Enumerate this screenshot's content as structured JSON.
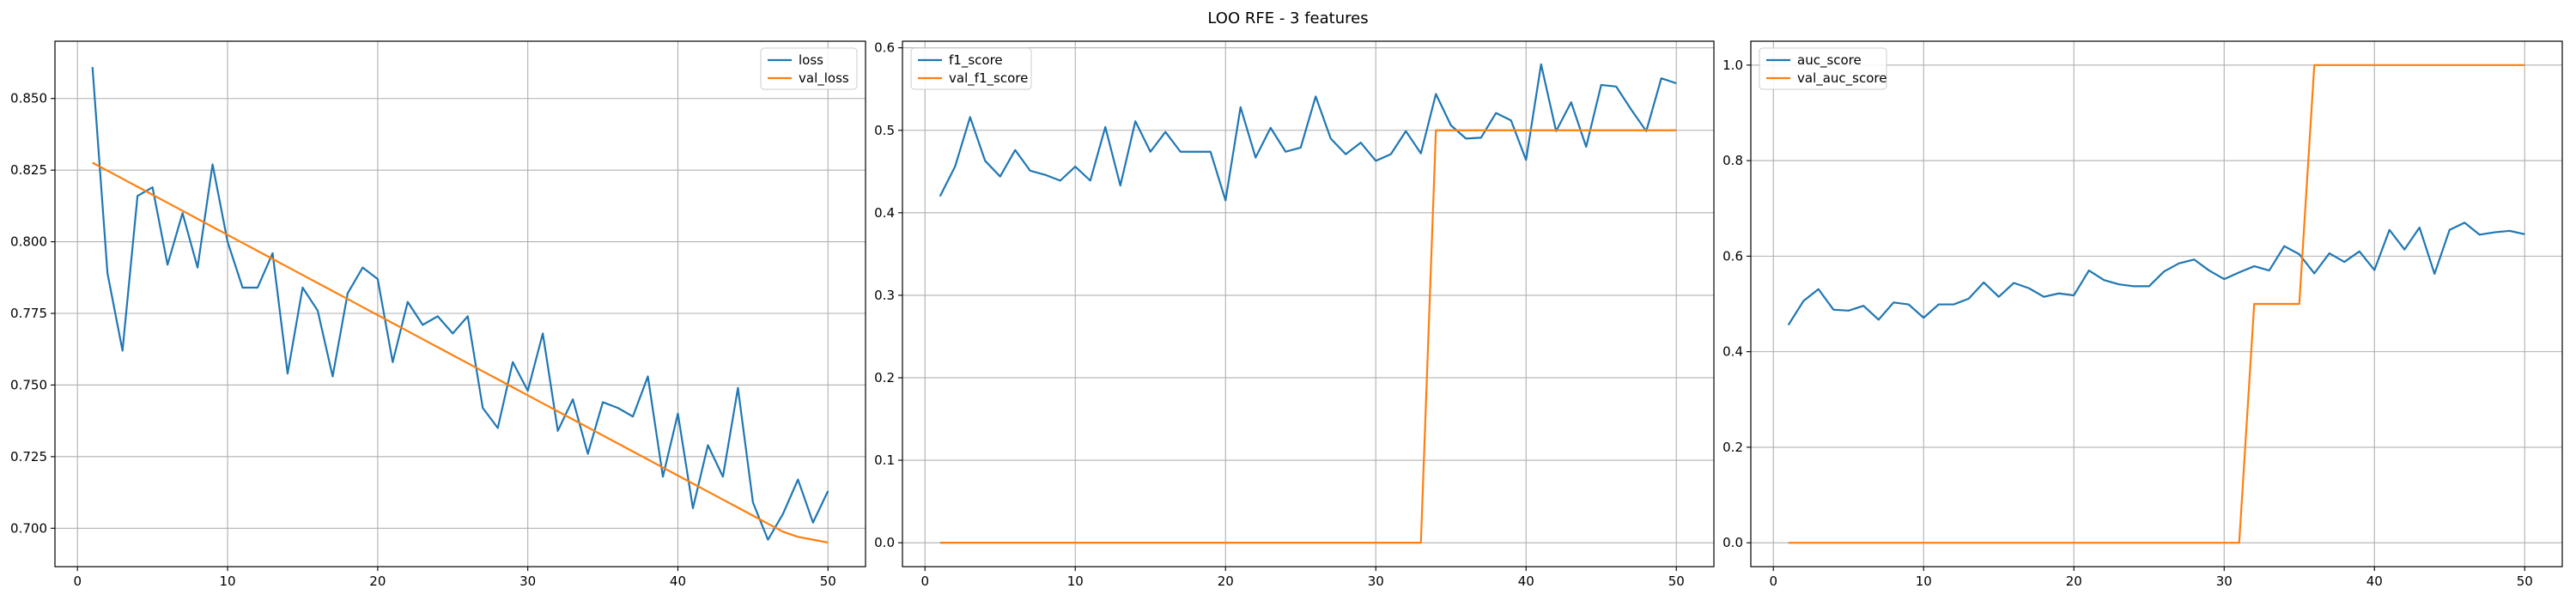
{
  "figure": {
    "title": "LOO RFE - 3 features"
  },
  "chart_data": [
    {
      "type": "line",
      "title": "",
      "xlabel": "",
      "ylabel": "",
      "grid": true,
      "legend_position": "top-right",
      "xlim": [
        -1.5,
        52.5
      ],
      "ylim": [
        0.6866,
        0.87
      ],
      "xticks": [
        0,
        10,
        20,
        30,
        40,
        50
      ],
      "yticks": [
        0.7,
        0.725,
        0.75,
        0.775,
        0.8,
        0.825,
        0.85
      ],
      "ytick_labels": [
        "0.700",
        "0.725",
        "0.750",
        "0.775",
        "0.800",
        "0.825",
        "0.850"
      ],
      "xtick_labels": [
        "0",
        "10",
        "20",
        "30",
        "40",
        "50"
      ],
      "series": [
        {
          "name": "loss",
          "color": "#1f77b4",
          "x": [
            1,
            2,
            3,
            4,
            5,
            6,
            7,
            8,
            9,
            10,
            11,
            12,
            13,
            14,
            15,
            16,
            17,
            18,
            19,
            20,
            21,
            22,
            23,
            24,
            25,
            26,
            27,
            28,
            29,
            30,
            31,
            32,
            33,
            34,
            35,
            36,
            37,
            38,
            39,
            40,
            41,
            42,
            43,
            44,
            45,
            46,
            47,
            48,
            49,
            50
          ],
          "y": [
            0.861,
            0.789,
            0.762,
            0.816,
            0.819,
            0.792,
            0.81,
            0.791,
            0.827,
            0.8,
            0.784,
            0.784,
            0.796,
            0.754,
            0.784,
            0.776,
            0.753,
            0.782,
            0.791,
            0.787,
            0.758,
            0.779,
            0.771,
            0.774,
            0.768,
            0.774,
            0.742,
            0.735,
            0.758,
            0.748,
            0.768,
            0.734,
            0.745,
            0.726,
            0.744,
            0.742,
            0.739,
            0.753,
            0.718,
            0.74,
            0.707,
            0.729,
            0.718,
            0.749,
            0.709,
            0.696,
            0.705,
            0.717,
            0.702,
            0.713
          ]
        },
        {
          "name": "val_loss",
          "color": "#ff7f0e",
          "x": [
            1,
            2,
            3,
            4,
            5,
            6,
            7,
            8,
            9,
            10,
            11,
            12,
            13,
            14,
            15,
            16,
            17,
            18,
            19,
            20,
            21,
            22,
            23,
            24,
            25,
            26,
            27,
            28,
            29,
            30,
            31,
            32,
            33,
            34,
            35,
            36,
            37,
            38,
            39,
            40,
            41,
            42,
            43,
            44,
            45,
            46,
            47,
            48,
            49,
            50
          ],
          "y": [
            0.8276,
            0.8248,
            0.822,
            0.8192,
            0.8164,
            0.8136,
            0.8108,
            0.808,
            0.8052,
            0.8024,
            0.7996,
            0.7968,
            0.794,
            0.7912,
            0.7884,
            0.7856,
            0.7828,
            0.78,
            0.7772,
            0.7744,
            0.7716,
            0.7688,
            0.766,
            0.7632,
            0.7604,
            0.7576,
            0.7548,
            0.752,
            0.7492,
            0.7464,
            0.7436,
            0.7408,
            0.738,
            0.7352,
            0.7324,
            0.7296,
            0.7268,
            0.724,
            0.7212,
            0.7184,
            0.7156,
            0.7128,
            0.71,
            0.7072,
            0.7044,
            0.7016,
            0.6988,
            0.697,
            0.696,
            0.695
          ]
        }
      ]
    },
    {
      "type": "line",
      "title": "",
      "xlabel": "",
      "ylabel": "",
      "grid": true,
      "legend_position": "top-left",
      "xlim": [
        -1.5,
        52.5
      ],
      "ylim": [
        -0.029,
        0.608
      ],
      "xticks": [
        0,
        10,
        20,
        30,
        40,
        50
      ],
      "yticks": [
        0.0,
        0.1,
        0.2,
        0.3,
        0.4,
        0.5,
        0.6
      ],
      "ytick_labels": [
        "0.0",
        "0.1",
        "0.2",
        "0.3",
        "0.4",
        "0.5",
        "0.6"
      ],
      "xtick_labels": [
        "0",
        "10",
        "20",
        "30",
        "40",
        "50"
      ],
      "series": [
        {
          "name": "f1_score",
          "color": "#1f77b4",
          "x": [
            1,
            2,
            3,
            4,
            5,
            6,
            7,
            8,
            9,
            10,
            11,
            12,
            13,
            14,
            15,
            16,
            17,
            18,
            19,
            20,
            21,
            22,
            23,
            24,
            25,
            26,
            27,
            28,
            29,
            30,
            31,
            32,
            33,
            34,
            35,
            36,
            37,
            38,
            39,
            40,
            41,
            42,
            43,
            44,
            45,
            46,
            47,
            48,
            49,
            50
          ],
          "y": [
            0.42,
            0.456,
            0.516,
            0.463,
            0.444,
            0.476,
            0.451,
            0.446,
            0.439,
            0.456,
            0.439,
            0.504,
            0.433,
            0.511,
            0.474,
            0.498,
            0.474,
            0.474,
            0.474,
            0.415,
            0.528,
            0.467,
            0.503,
            0.474,
            0.479,
            0.541,
            0.49,
            0.471,
            0.485,
            0.463,
            0.471,
            0.499,
            0.472,
            0.544,
            0.506,
            0.49,
            0.491,
            0.521,
            0.512,
            0.464,
            0.58,
            0.499,
            0.534,
            0.48,
            0.555,
            0.553,
            0.525,
            0.499,
            0.563,
            0.557
          ]
        },
        {
          "name": "val_f1_score",
          "color": "#ff7f0e",
          "x": [
            1,
            2,
            3,
            4,
            5,
            6,
            7,
            8,
            9,
            10,
            11,
            12,
            13,
            14,
            15,
            16,
            17,
            18,
            19,
            20,
            21,
            22,
            23,
            24,
            25,
            26,
            27,
            28,
            29,
            30,
            31,
            32,
            33,
            34,
            35,
            36,
            37,
            38,
            39,
            40,
            41,
            42,
            43,
            44,
            45,
            46,
            47,
            48,
            49,
            50
          ],
          "y": [
            0,
            0,
            0,
            0,
            0,
            0,
            0,
            0,
            0,
            0,
            0,
            0,
            0,
            0,
            0,
            0,
            0,
            0,
            0,
            0,
            0,
            0,
            0,
            0,
            0,
            0,
            0,
            0,
            0,
            0,
            0,
            0,
            0,
            0.5,
            0.5,
            0.5,
            0.5,
            0.5,
            0.5,
            0.5,
            0.5,
            0.5,
            0.5,
            0.5,
            0.5,
            0.5,
            0.5,
            0.5,
            0.5,
            0.5
          ]
        }
      ]
    },
    {
      "type": "line",
      "title": "",
      "xlabel": "",
      "ylabel": "",
      "grid": true,
      "legend_position": "top-left",
      "xlim": [
        -1.5,
        52.5
      ],
      "ylim": [
        -0.05,
        1.05
      ],
      "xticks": [
        0,
        10,
        20,
        30,
        40,
        50
      ],
      "yticks": [
        0.0,
        0.2,
        0.4,
        0.6,
        0.8,
        1.0
      ],
      "ytick_labels": [
        "0.0",
        "0.2",
        "0.4",
        "0.6",
        "0.8",
        "1.0"
      ],
      "xtick_labels": [
        "0",
        "10",
        "20",
        "30",
        "40",
        "50"
      ],
      "series": [
        {
          "name": "auc_score",
          "color": "#1f77b4",
          "x": [
            1,
            2,
            3,
            4,
            5,
            6,
            7,
            8,
            9,
            10,
            11,
            12,
            13,
            14,
            15,
            16,
            17,
            18,
            19,
            20,
            21,
            22,
            23,
            24,
            25,
            26,
            27,
            28,
            29,
            30,
            31,
            32,
            33,
            34,
            35,
            36,
            37,
            38,
            39,
            40,
            41,
            42,
            43,
            44,
            45,
            46,
            47,
            48,
            49,
            50
          ],
          "y": [
            0.456,
            0.506,
            0.531,
            0.488,
            0.486,
            0.496,
            0.467,
            0.503,
            0.499,
            0.471,
            0.499,
            0.499,
            0.511,
            0.545,
            0.515,
            0.544,
            0.533,
            0.515,
            0.522,
            0.518,
            0.57,
            0.55,
            0.541,
            0.537,
            0.537,
            0.568,
            0.585,
            0.593,
            0.57,
            0.552,
            0.566,
            0.579,
            0.57,
            0.621,
            0.604,
            0.564,
            0.606,
            0.588,
            0.61,
            0.571,
            0.655,
            0.614,
            0.66,
            0.563,
            0.655,
            0.67,
            0.645,
            0.65,
            0.653,
            0.646
          ]
        },
        {
          "name": "val_auc_score",
          "color": "#ff7f0e",
          "x": [
            1,
            2,
            3,
            4,
            5,
            6,
            7,
            8,
            9,
            10,
            11,
            12,
            13,
            14,
            15,
            16,
            17,
            18,
            19,
            20,
            21,
            22,
            23,
            24,
            25,
            26,
            27,
            28,
            29,
            30,
            31,
            32,
            33,
            34,
            35,
            36,
            37,
            38,
            39,
            40,
            41,
            42,
            43,
            44,
            45,
            46,
            47,
            48,
            49,
            50
          ],
          "y": [
            0,
            0,
            0,
            0,
            0,
            0,
            0,
            0,
            0,
            0,
            0,
            0,
            0,
            0,
            0,
            0,
            0,
            0,
            0,
            0,
            0,
            0,
            0,
            0,
            0,
            0,
            0,
            0,
            0,
            0,
            0,
            0.5,
            0.5,
            0.5,
            0.5,
            1,
            1,
            1,
            1,
            1,
            1,
            1,
            1,
            1,
            1,
            1,
            1,
            1,
            1,
            1
          ]
        }
      ]
    }
  ]
}
